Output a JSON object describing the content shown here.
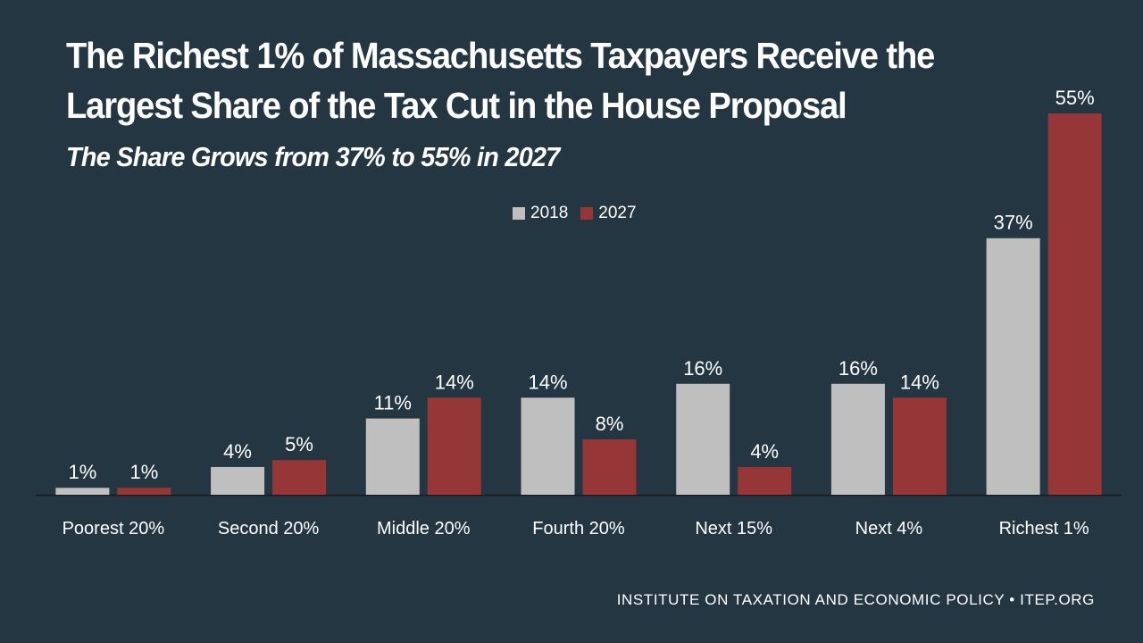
{
  "colors": {
    "background": "#243641",
    "series_2018": "#bfbfbf",
    "series_2027": "#963636",
    "text": "#ffffff",
    "axis": "#1a1a1a"
  },
  "chart_data": {
    "type": "bar",
    "title": "The Richest 1% of Massachusetts Taxpayers Receive the Largest Share of the Tax Cut in the House Proposal",
    "subtitle": "The Share Grows from 37% to 55% in 2027",
    "categories": [
      "Poorest 20%",
      "Second 20%",
      "Middle 20%",
      "Fourth 20%",
      "Next 15%",
      "Next 4%",
      "Richest 1%"
    ],
    "series": [
      {
        "name": "2018",
        "values": [
          1,
          4,
          11,
          14,
          16,
          16,
          37
        ],
        "labels": [
          "1%",
          "4%",
          "11%",
          "14%",
          "16%",
          "16%",
          "37%"
        ]
      },
      {
        "name": "2027",
        "values": [
          1,
          5,
          14,
          8,
          4,
          14,
          55
        ],
        "labels": [
          "1%",
          "5%",
          "14%",
          "8%",
          "4%",
          "14%",
          "55%"
        ]
      }
    ],
    "ylim": [
      0,
      55
    ],
    "grid": false,
    "legend": "top-center"
  },
  "footer": "INSTITUTE ON TAXATION AND ECONOMIC POLICY • ITEP.ORG"
}
